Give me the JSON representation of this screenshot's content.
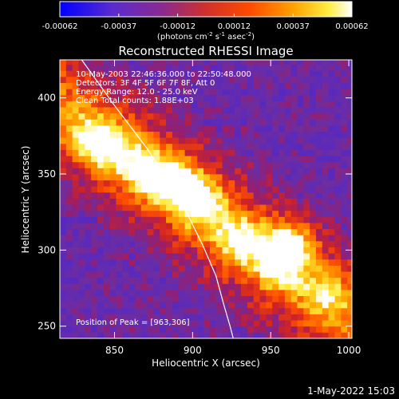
{
  "chart_data": [
    {
      "type": "colorbar",
      "colormap": "hot-metal (blue-purple-red-orange-yellow-white)",
      "ticks": [
        "-0.00062",
        "-0.00037",
        "-0.00012",
        "0.00012",
        "0.00037",
        "0.00062"
      ],
      "range": [
        -0.00062,
        0.00062
      ],
      "unit_label": {
        "prefix": "(photons cm",
        "exp1": "-2",
        "mid1": " s",
        "exp2": "-1",
        "mid2": " asec",
        "exp3": "-2",
        "suffix": ")"
      }
    },
    {
      "type": "heatmap",
      "title": "Reconstructed RHESSI Image",
      "xlabel": "Heliocentric X (arcsec)",
      "ylabel": "Heliocentric Y (arcsec)",
      "xlim": [
        815,
        1002
      ],
      "ylim": [
        242,
        425
      ],
      "xticks": [
        "850",
        "900",
        "950",
        "1000"
      ],
      "yticks": [
        "250",
        "300",
        "350",
        "400"
      ],
      "annotations": [
        "10-May-2003 22:46:36.000 to 22:50:48.000",
        "Detectors: 3F 4F 5F 6F 7F 8F, Att 0",
        "Energy Range: 12.0 - 25.0 keV",
        "Clean     Total counts: 1.88E+03"
      ],
      "peak_label": "Position of Peak = [963,306]",
      "peak": [
        963,
        306
      ],
      "limb_curve": [
        [
          829,
          425
        ],
        [
          850,
          395
        ],
        [
          870,
          368
        ],
        [
          885,
          345
        ],
        [
          897,
          323
        ],
        [
          907,
          302
        ],
        [
          915,
          283
        ],
        [
          920,
          264
        ],
        [
          924,
          250
        ],
        [
          926,
          242
        ]
      ],
      "emission_band": {
        "axis_start": [
          815,
          395
        ],
        "axis_end": [
          1002,
          255
        ],
        "blobs": [
          {
            "x": 890,
            "y": 343,
            "intensity": 1.0
          },
          {
            "x": 905,
            "y": 330,
            "intensity": 0.9
          },
          {
            "x": 930,
            "y": 306,
            "intensity": 0.85
          },
          {
            "x": 962,
            "y": 303,
            "intensity": 1.0
          },
          {
            "x": 955,
            "y": 290,
            "intensity": 0.7
          },
          {
            "x": 835,
            "y": 375,
            "intensity": 0.65
          },
          {
            "x": 848,
            "y": 365,
            "intensity": 0.75
          },
          {
            "x": 870,
            "y": 352,
            "intensity": 0.8
          },
          {
            "x": 985,
            "y": 270,
            "intensity": 0.6
          }
        ]
      }
    }
  ],
  "footer": {
    "date": "1-May-2022 15:03"
  }
}
